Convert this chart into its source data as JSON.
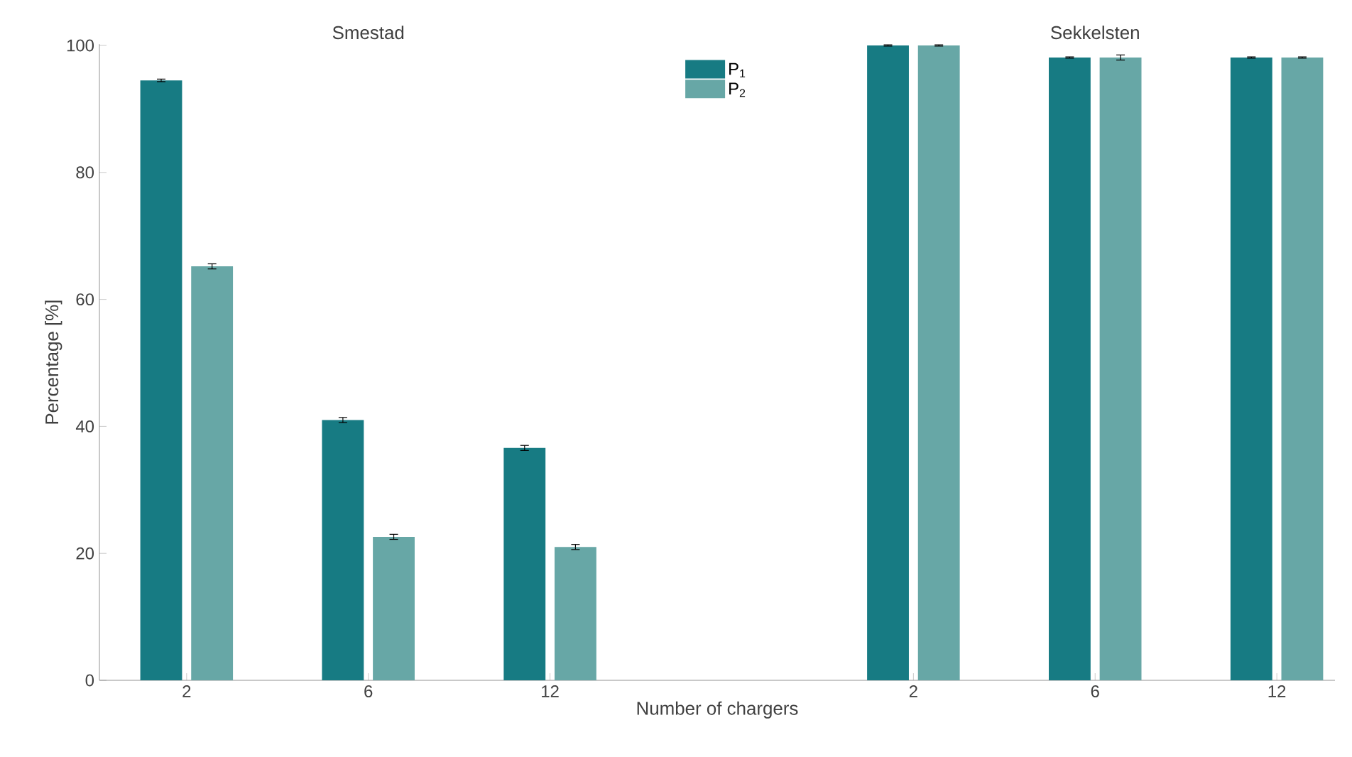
{
  "chart_data": {
    "type": "bar",
    "xlabel": "Number of chargers",
    "ylabel": "Percentage [%]",
    "categories": [
      "2",
      "6",
      "12",
      "2",
      "6",
      "12"
    ],
    "series": [
      {
        "name": "P$_{1}$",
        "color": "#177b83",
        "values": [
          94.5,
          41.0,
          36.6,
          100,
          98.1,
          98.1
        ],
        "errors": [
          0.2,
          0.4,
          0.4,
          0.1,
          0.1,
          0.1
        ]
      },
      {
        "name": "P$_{2}$",
        "color": "#67a7a6",
        "values": [
          65.2,
          22.6,
          21.0,
          100,
          98.1,
          98.1
        ],
        "errors": [
          0.4,
          0.4,
          0.4,
          0.1,
          0.4,
          0.1
        ]
      }
    ],
    "annotations": [
      "Smestad",
      "Sekkelsten"
    ],
    "ylim": [
      0,
      100.2
    ],
    "yticks": [
      0,
      20,
      40,
      60,
      80,
      100
    ],
    "grid": false,
    "legend": "top"
  }
}
